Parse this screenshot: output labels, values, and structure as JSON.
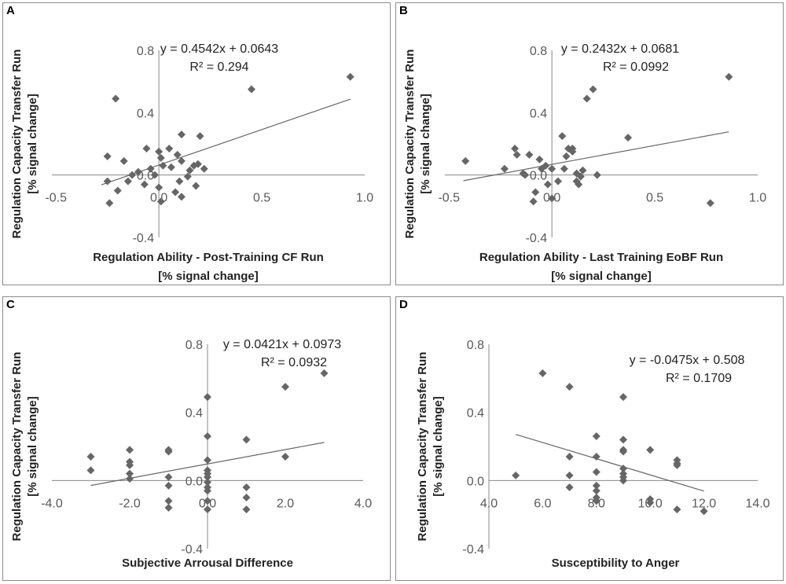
{
  "chart_data": [
    {
      "panel": "A",
      "type": "scatter",
      "equation": "y = 0.4542x + 0.0643",
      "r2": "R² = 0.294",
      "slope": 0.4542,
      "intercept": 0.0643,
      "ylabel": [
        "Regulation Capacity Transfer Run",
        "[% signal change]"
      ],
      "xlabel": [
        "Regulation Ability - Post-Training CF Run",
        "[% signal change]"
      ],
      "xticks": [
        -0.5,
        0.0,
        0.5,
        1.0
      ],
      "xtick_labels": [
        "-0.5",
        "0.0",
        "0.5",
        "1.0"
      ],
      "yticks": [
        -0.4,
        0.0,
        0.4,
        0.8
      ],
      "ytick_labels": [
        "-0.4",
        "0.0",
        "0.4",
        "0.8"
      ],
      "xlim": [
        -0.52,
        1.0
      ],
      "ylim": [
        -0.4,
        0.8
      ],
      "trend_x": [
        -0.28,
        0.93
      ],
      "points": [
        [
          -0.25,
          -0.04
        ],
        [
          -0.25,
          0.12
        ],
        [
          -0.24,
          -0.18
        ],
        [
          -0.21,
          0.49
        ],
        [
          -0.2,
          -0.1
        ],
        [
          -0.17,
          0.09
        ],
        [
          -0.15,
          -0.04
        ],
        [
          -0.13,
          0.0
        ],
        [
          -0.1,
          0.02
        ],
        [
          -0.07,
          -0.06
        ],
        [
          -0.06,
          0.17
        ],
        [
          -0.04,
          0.04
        ],
        [
          -0.02,
          0.0
        ],
        [
          0.0,
          -0.08
        ],
        [
          0.0,
          0.15
        ],
        [
          0.01,
          0.11
        ],
        [
          0.01,
          -0.17
        ],
        [
          0.02,
          0.06
        ],
        [
          0.05,
          0.17
        ],
        [
          0.06,
          0.05
        ],
        [
          0.08,
          -0.11
        ],
        [
          0.09,
          0.13
        ],
        [
          0.1,
          -0.04
        ],
        [
          0.11,
          0.09
        ],
        [
          0.11,
          0.26
        ],
        [
          0.11,
          -0.14
        ],
        [
          0.14,
          -0.01
        ],
        [
          0.15,
          0.03
        ],
        [
          0.17,
          0.06
        ],
        [
          0.18,
          -0.07
        ],
        [
          0.19,
          0.07
        ],
        [
          0.2,
          0.25
        ],
        [
          0.22,
          0.04
        ],
        [
          0.45,
          0.55
        ],
        [
          0.93,
          0.63
        ]
      ]
    },
    {
      "panel": "B",
      "type": "scatter",
      "equation": "y = 0.2432x + 0.0681",
      "r2": "R² = 0.0992",
      "slope": 0.2432,
      "intercept": 0.0681,
      "ylabel": [
        "Regulation Capacity Transfer Run",
        "[% signal change]"
      ],
      "xlabel": [
        "Regulation Ability - Last Training EoBF Run",
        "[% signal change]"
      ],
      "xticks": [
        -0.5,
        0.0,
        0.5,
        1.0
      ],
      "xtick_labels": [
        "-0.5",
        "0.0",
        "0.5",
        "1.0"
      ],
      "yticks": [
        -0.4,
        0.0,
        0.4,
        0.8
      ],
      "ytick_labels": [
        "-0.4",
        "0.0",
        "0.4",
        "0.8"
      ],
      "xlim": [
        -0.52,
        1.0
      ],
      "ylim": [
        -0.4,
        0.8
      ],
      "trend_x": [
        -0.43,
        0.86
      ],
      "points": [
        [
          -0.42,
          0.09
        ],
        [
          -0.23,
          0.04
        ],
        [
          -0.18,
          0.17
        ],
        [
          -0.17,
          0.13
        ],
        [
          -0.14,
          0.01
        ],
        [
          -0.13,
          0.0
        ],
        [
          -0.11,
          0.13
        ],
        [
          -0.09,
          -0.17
        ],
        [
          -0.08,
          -0.11
        ],
        [
          -0.06,
          0.1
        ],
        [
          -0.05,
          0.04
        ],
        [
          -0.03,
          0.06
        ],
        [
          -0.02,
          -0.06
        ],
        [
          0.0,
          -0.15
        ],
        [
          0.0,
          0.04
        ],
        [
          0.03,
          -0.04
        ],
        [
          0.05,
          0.25
        ],
        [
          0.06,
          0.04
        ],
        [
          0.07,
          0.12
        ],
        [
          0.08,
          0.17
        ],
        [
          0.1,
          0.17
        ],
        [
          0.1,
          0.15
        ],
        [
          0.12,
          0.01
        ],
        [
          0.12,
          -0.04
        ],
        [
          0.13,
          -0.06
        ],
        [
          0.14,
          -0.01
        ],
        [
          0.15,
          0.03
        ],
        [
          0.17,
          0.49
        ],
        [
          0.2,
          0.55
        ],
        [
          0.22,
          0.0
        ],
        [
          0.37,
          0.24
        ],
        [
          0.77,
          -0.18
        ],
        [
          0.86,
          0.63
        ]
      ]
    },
    {
      "panel": "C",
      "type": "scatter",
      "equation": "y = 0.0421x + 0.0973",
      "r2": "R² = 0.0932",
      "slope": 0.0421,
      "intercept": 0.0973,
      "ylabel": [
        "Regulation Capacity Transfer Run",
        "[% signal change]"
      ],
      "xlabel": [
        "Subjective Arrousal Difference"
      ],
      "xticks": [
        -4.0,
        -2.0,
        0.0,
        2.0,
        4.0
      ],
      "xtick_labels": [
        "-4.0",
        "-2.0",
        "0.0",
        "2.0",
        "4.0"
      ],
      "yticks": [
        -0.4,
        0.0,
        0.4,
        0.8
      ],
      "ytick_labels": [
        "-0.4",
        "0.0",
        "0.4",
        "0.8"
      ],
      "xlim": [
        -4.0,
        4.0
      ],
      "ylim": [
        -0.4,
        0.8
      ],
      "trend_x": [
        -3.0,
        3.0
      ],
      "points": [
        [
          -3,
          0.14
        ],
        [
          -3,
          0.06
        ],
        [
          -2,
          0.18
        ],
        [
          -2,
          0.11
        ],
        [
          -2,
          0.09
        ],
        [
          -2,
          0.04
        ],
        [
          -2,
          0.01
        ],
        [
          -1,
          0.18
        ],
        [
          -1,
          0.17
        ],
        [
          -1,
          0.02
        ],
        [
          -1,
          -0.03
        ],
        [
          -1,
          -0.12
        ],
        [
          -1,
          -0.16
        ],
        [
          0,
          0.49
        ],
        [
          0,
          0.26
        ],
        [
          0,
          0.12
        ],
        [
          0,
          0.06
        ],
        [
          0,
          0.04
        ],
        [
          0,
          0.02
        ],
        [
          0,
          -0.01
        ],
        [
          0,
          -0.04
        ],
        [
          0,
          -0.06
        ],
        [
          0,
          -0.12
        ],
        [
          0,
          -0.17
        ],
        [
          1,
          0.24
        ],
        [
          1,
          -0.04
        ],
        [
          1,
          -0.1
        ],
        [
          1,
          -0.17
        ],
        [
          2,
          0.55
        ],
        [
          2,
          0.14
        ],
        [
          3,
          0.63
        ]
      ]
    },
    {
      "panel": "D",
      "type": "scatter",
      "equation": "y = -0.0475x + 0.508",
      "r2": "R² = 0.1709",
      "slope": -0.0475,
      "intercept": 0.508,
      "ylabel": [
        "Regulation Capacity Transfer Run",
        "[% signal change]"
      ],
      "xlabel": [
        "Susceptibility to Anger"
      ],
      "xticks": [
        4.0,
        6.0,
        8.0,
        10.0,
        12.0,
        14.0
      ],
      "xtick_labels": [
        "4.0",
        "6.0",
        "8.0",
        "10.0",
        "12.0",
        "14.0"
      ],
      "yticks": [
        -0.4,
        0.0,
        0.4,
        0.8
      ],
      "ytick_labels": [
        "-0.4",
        "0.0",
        "0.4",
        "0.8"
      ],
      "xlim": [
        4.0,
        14.0
      ],
      "ylim": [
        -0.4,
        0.8
      ],
      "trend_x": [
        5.0,
        12.0
      ],
      "points": [
        [
          5,
          0.03
        ],
        [
          6,
          0.63
        ],
        [
          7,
          0.55
        ],
        [
          7,
          0.14
        ],
        [
          7,
          0.03
        ],
        [
          7,
          -0.04
        ],
        [
          8,
          0.26
        ],
        [
          8,
          0.14
        ],
        [
          8,
          0.05
        ],
        [
          8,
          -0.03
        ],
        [
          8,
          -0.06
        ],
        [
          8,
          -0.1
        ],
        [
          8,
          -0.12
        ],
        [
          9,
          0.49
        ],
        [
          9,
          0.24
        ],
        [
          9,
          0.18
        ],
        [
          9,
          0.17
        ],
        [
          9,
          0.07
        ],
        [
          9,
          0.04
        ],
        [
          9,
          0.02
        ],
        [
          9,
          0.0
        ],
        [
          10,
          0.18
        ],
        [
          10,
          -0.11
        ],
        [
          10,
          -0.13
        ],
        [
          11,
          0.12
        ],
        [
          11,
          0.1
        ],
        [
          11,
          0.09
        ],
        [
          11,
          -0.17
        ],
        [
          12,
          -0.18
        ]
      ]
    }
  ]
}
